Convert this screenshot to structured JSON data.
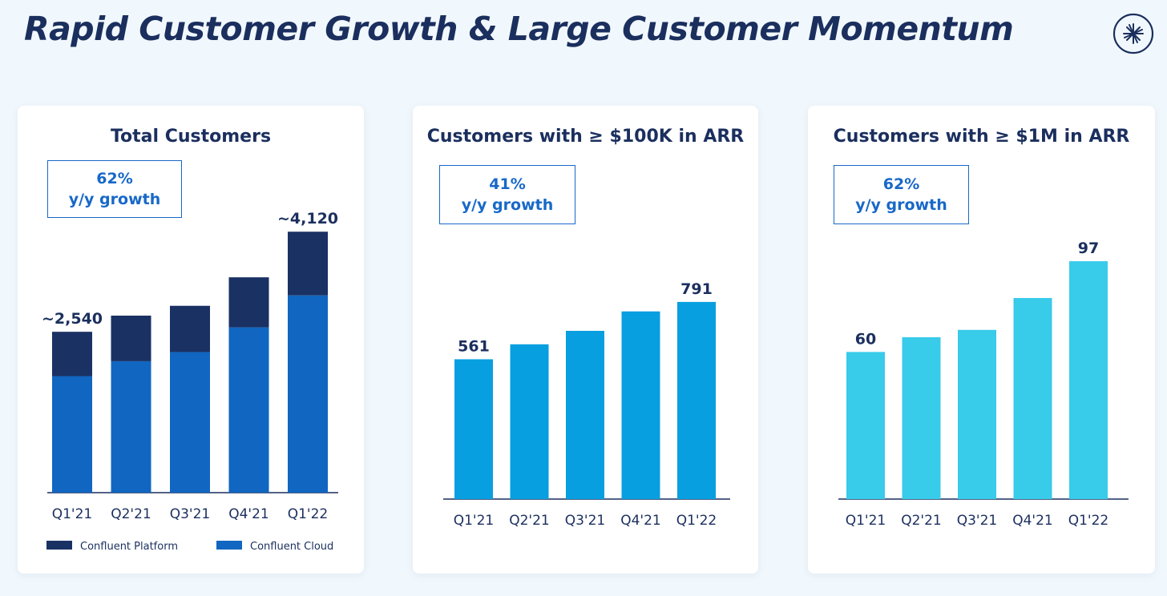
{
  "slide": {
    "title": "Rapid Customer Growth & Large Customer Momentum"
  },
  "colors": {
    "navy": "#1b2f5e",
    "platform": "#1a3163",
    "cloud": "#1166c1",
    "arr100k": "#079fdf",
    "arr1m": "#38cbea",
    "growth_text": "#1868c8"
  },
  "chart_data": [
    {
      "type": "bar",
      "stacked": true,
      "title": "Total Customers",
      "growth": {
        "pct": "62%",
        "label": "y/y growth"
      },
      "categories": [
        "Q1'21",
        "Q2'21",
        "Q3'21",
        "Q4'21",
        "Q1'22"
      ],
      "series": [
        {
          "name": "Confluent Cloud",
          "values": [
            1840,
            2075,
            2220,
            2610,
            3115
          ]
        },
        {
          "name": "Confluent Platform",
          "values": [
            700,
            720,
            730,
            790,
            1005
          ]
        }
      ],
      "totals": [
        2540,
        2795,
        2950,
        3400,
        4120
      ],
      "data_labels": [
        "~2,540",
        "",
        "",
        "",
        "~4,120"
      ],
      "ylim": [
        0,
        4300
      ],
      "legend": "bottom"
    },
    {
      "type": "bar",
      "title": "Customers with ≥ $100K in ARR",
      "growth": {
        "pct": "41%",
        "label": "y/y growth"
      },
      "categories": [
        "Q1'21",
        "Q2'21",
        "Q3'21",
        "Q4'21",
        "Q1'22"
      ],
      "values": [
        561,
        621,
        675,
        753,
        791
      ],
      "data_labels": [
        "561",
        "",
        "",
        "",
        "791"
      ],
      "ylim": [
        0,
        900
      ]
    },
    {
      "type": "bar",
      "title": "Customers with ≥ $1M in ARR",
      "growth": {
        "pct": "62%",
        "label": "y/y growth"
      },
      "categories": [
        "Q1'21",
        "Q2'21",
        "Q3'21",
        "Q4'21",
        "Q1'22"
      ],
      "values": [
        60,
        66,
        69,
        82,
        97
      ],
      "data_labels": [
        "60",
        "",
        "",
        "",
        "97"
      ],
      "ylim": [
        0,
        115
      ]
    }
  ]
}
